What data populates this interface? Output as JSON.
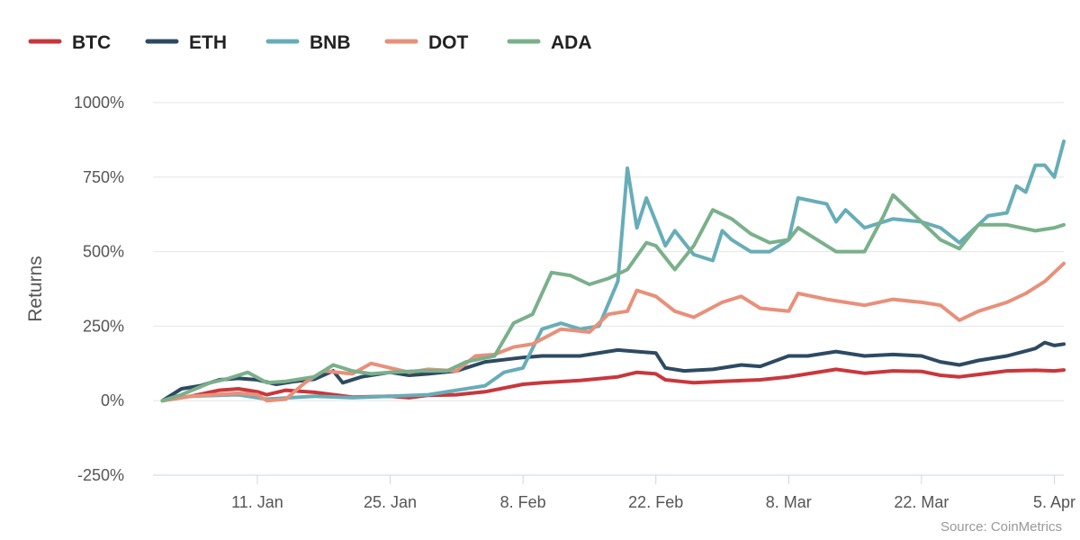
{
  "chart_data": {
    "type": "line",
    "ylabel": "Returns",
    "source": "Source: CoinMetrics",
    "ylim": [
      -250,
      1000
    ],
    "yticks": [
      -250,
      0,
      250,
      500,
      750,
      1000
    ],
    "ytick_labels": [
      "-250%",
      "0%",
      "250%",
      "500%",
      "750%",
      "1000%"
    ],
    "xlim": [
      "2020-12-31",
      "2021-04-06"
    ],
    "xticks": [
      "2021-01-11",
      "2021-01-25",
      "2021-02-08",
      "2021-02-22",
      "2021-03-08",
      "2021-03-22",
      "2021-04-05"
    ],
    "xtick_labels": [
      "11. Jan",
      "25. Jan",
      "8. Feb",
      "22. Feb",
      "8. Mar",
      "22. Mar",
      "5. Apr"
    ],
    "grid": true,
    "legend": "top-left",
    "series": [
      {
        "name": "BTC",
        "color": "#c8373c",
        "points": [
          [
            "2021-01-01",
            0
          ],
          [
            "2021-01-04",
            15
          ],
          [
            "2021-01-07",
            35
          ],
          [
            "2021-01-09",
            40
          ],
          [
            "2021-01-11",
            30
          ],
          [
            "2021-01-12",
            20
          ],
          [
            "2021-01-14",
            35
          ],
          [
            "2021-01-17",
            28
          ],
          [
            "2021-01-21",
            12
          ],
          [
            "2021-01-25",
            15
          ],
          [
            "2021-01-27",
            10
          ],
          [
            "2021-01-29",
            18
          ],
          [
            "2021-02-01",
            20
          ],
          [
            "2021-02-04",
            30
          ],
          [
            "2021-02-08",
            55
          ],
          [
            "2021-02-10",
            60
          ],
          [
            "2021-02-14",
            68
          ],
          [
            "2021-02-18",
            80
          ],
          [
            "2021-02-20",
            95
          ],
          [
            "2021-02-22",
            90
          ],
          [
            "2021-02-23",
            70
          ],
          [
            "2021-02-26",
            60
          ],
          [
            "2021-03-01",
            65
          ],
          [
            "2021-03-05",
            70
          ],
          [
            "2021-03-08",
            80
          ],
          [
            "2021-03-10",
            90
          ],
          [
            "2021-03-13",
            105
          ],
          [
            "2021-03-16",
            92
          ],
          [
            "2021-03-19",
            100
          ],
          [
            "2021-03-22",
            98
          ],
          [
            "2021-03-24",
            85
          ],
          [
            "2021-03-26",
            80
          ],
          [
            "2021-03-28",
            88
          ],
          [
            "2021-03-31",
            100
          ],
          [
            "2021-04-03",
            102
          ],
          [
            "2021-04-05",
            100
          ],
          [
            "2021-04-06",
            103
          ]
        ]
      },
      {
        "name": "ETH",
        "color": "#2e4a62",
        "points": [
          [
            "2021-01-01",
            0
          ],
          [
            "2021-01-03",
            40
          ],
          [
            "2021-01-05",
            50
          ],
          [
            "2021-01-07",
            70
          ],
          [
            "2021-01-09",
            75
          ],
          [
            "2021-01-11",
            70
          ],
          [
            "2021-01-13",
            55
          ],
          [
            "2021-01-15",
            65
          ],
          [
            "2021-01-17",
            72
          ],
          [
            "2021-01-19",
            100
          ],
          [
            "2021-01-20",
            60
          ],
          [
            "2021-01-22",
            80
          ],
          [
            "2021-01-25",
            95
          ],
          [
            "2021-01-27",
            85
          ],
          [
            "2021-01-29",
            90
          ],
          [
            "2021-02-01",
            100
          ],
          [
            "2021-02-04",
            130
          ],
          [
            "2021-02-08",
            145
          ],
          [
            "2021-02-10",
            150
          ],
          [
            "2021-02-14",
            150
          ],
          [
            "2021-02-18",
            170
          ],
          [
            "2021-02-20",
            165
          ],
          [
            "2021-02-22",
            160
          ],
          [
            "2021-02-23",
            110
          ],
          [
            "2021-02-25",
            100
          ],
          [
            "2021-02-28",
            105
          ],
          [
            "2021-03-03",
            120
          ],
          [
            "2021-03-05",
            115
          ],
          [
            "2021-03-08",
            150
          ],
          [
            "2021-03-10",
            150
          ],
          [
            "2021-03-13",
            165
          ],
          [
            "2021-03-16",
            150
          ],
          [
            "2021-03-19",
            155
          ],
          [
            "2021-03-22",
            150
          ],
          [
            "2021-03-24",
            130
          ],
          [
            "2021-03-26",
            120
          ],
          [
            "2021-03-28",
            135
          ],
          [
            "2021-03-31",
            150
          ],
          [
            "2021-04-03",
            175
          ],
          [
            "2021-04-04",
            195
          ],
          [
            "2021-04-05",
            185
          ],
          [
            "2021-04-06",
            190
          ]
        ]
      },
      {
        "name": "BNB",
        "color": "#67adb8",
        "points": [
          [
            "2021-01-01",
            0
          ],
          [
            "2021-01-04",
            15
          ],
          [
            "2021-01-09",
            20
          ],
          [
            "2021-01-12",
            5
          ],
          [
            "2021-01-17",
            15
          ],
          [
            "2021-01-21",
            10
          ],
          [
            "2021-01-25",
            15
          ],
          [
            "2021-01-29",
            20
          ],
          [
            "2021-02-01",
            35
          ],
          [
            "2021-02-04",
            50
          ],
          [
            "2021-02-06",
            95
          ],
          [
            "2021-02-08",
            110
          ],
          [
            "2021-02-10",
            240
          ],
          [
            "2021-02-12",
            260
          ],
          [
            "2021-02-14",
            240
          ],
          [
            "2021-02-16",
            250
          ],
          [
            "2021-02-18",
            400
          ],
          [
            "2021-02-19",
            780
          ],
          [
            "2021-02-20",
            580
          ],
          [
            "2021-02-21",
            680
          ],
          [
            "2021-02-23",
            520
          ],
          [
            "2021-02-24",
            570
          ],
          [
            "2021-02-26",
            490
          ],
          [
            "2021-02-28",
            470
          ],
          [
            "2021-03-01",
            570
          ],
          [
            "2021-03-02",
            540
          ],
          [
            "2021-03-04",
            500
          ],
          [
            "2021-03-06",
            500
          ],
          [
            "2021-03-08",
            540
          ],
          [
            "2021-03-09",
            680
          ],
          [
            "2021-03-12",
            660
          ],
          [
            "2021-03-13",
            600
          ],
          [
            "2021-03-14",
            640
          ],
          [
            "2021-03-16",
            580
          ],
          [
            "2021-03-19",
            610
          ],
          [
            "2021-03-22",
            600
          ],
          [
            "2021-03-24",
            580
          ],
          [
            "2021-03-26",
            530
          ],
          [
            "2021-03-27",
            560
          ],
          [
            "2021-03-29",
            620
          ],
          [
            "2021-03-31",
            630
          ],
          [
            "2021-04-01",
            720
          ],
          [
            "2021-04-02",
            700
          ],
          [
            "2021-04-03",
            790
          ],
          [
            "2021-04-04",
            790
          ],
          [
            "2021-04-05",
            750
          ],
          [
            "2021-04-06",
            870
          ]
        ]
      },
      {
        "name": "DOT",
        "color": "#e8907a",
        "points": [
          [
            "2021-01-01",
            0
          ],
          [
            "2021-01-04",
            15
          ],
          [
            "2021-01-09",
            25
          ],
          [
            "2021-01-11",
            20
          ],
          [
            "2021-01-12",
            0
          ],
          [
            "2021-01-14",
            5
          ],
          [
            "2021-01-16",
            60
          ],
          [
            "2021-01-18",
            100
          ],
          [
            "2021-01-21",
            90
          ],
          [
            "2021-01-23",
            125
          ],
          [
            "2021-01-25",
            110
          ],
          [
            "2021-01-27",
            95
          ],
          [
            "2021-01-29",
            105
          ],
          [
            "2021-02-01",
            100
          ],
          [
            "2021-02-03",
            150
          ],
          [
            "2021-02-05",
            155
          ],
          [
            "2021-02-07",
            180
          ],
          [
            "2021-02-09",
            190
          ],
          [
            "2021-02-12",
            240
          ],
          [
            "2021-02-15",
            230
          ],
          [
            "2021-02-17",
            290
          ],
          [
            "2021-02-19",
            300
          ],
          [
            "2021-02-20",
            370
          ],
          [
            "2021-02-22",
            350
          ],
          [
            "2021-02-24",
            300
          ],
          [
            "2021-02-26",
            280
          ],
          [
            "2021-03-01",
            330
          ],
          [
            "2021-03-03",
            350
          ],
          [
            "2021-03-05",
            310
          ],
          [
            "2021-03-08",
            300
          ],
          [
            "2021-03-09",
            360
          ],
          [
            "2021-03-12",
            340
          ],
          [
            "2021-03-14",
            330
          ],
          [
            "2021-03-16",
            320
          ],
          [
            "2021-03-19",
            340
          ],
          [
            "2021-03-22",
            330
          ],
          [
            "2021-03-24",
            320
          ],
          [
            "2021-03-26",
            270
          ],
          [
            "2021-03-28",
            300
          ],
          [
            "2021-03-31",
            330
          ],
          [
            "2021-04-02",
            360
          ],
          [
            "2021-04-04",
            400
          ],
          [
            "2021-04-06",
            460
          ]
        ]
      },
      {
        "name": "ADA",
        "color": "#7ab08a",
        "points": [
          [
            "2021-01-01",
            0
          ],
          [
            "2021-01-03",
            20
          ],
          [
            "2021-01-06",
            60
          ],
          [
            "2021-01-08",
            75
          ],
          [
            "2021-01-10",
            95
          ],
          [
            "2021-01-12",
            60
          ],
          [
            "2021-01-14",
            65
          ],
          [
            "2021-01-17",
            80
          ],
          [
            "2021-01-19",
            120
          ],
          [
            "2021-01-21",
            100
          ],
          [
            "2021-01-23",
            90
          ],
          [
            "2021-01-25",
            95
          ],
          [
            "2021-01-28",
            100
          ],
          [
            "2021-01-31",
            100
          ],
          [
            "2021-02-02",
            130
          ],
          [
            "2021-02-05",
            150
          ],
          [
            "2021-02-07",
            260
          ],
          [
            "2021-02-09",
            290
          ],
          [
            "2021-02-11",
            430
          ],
          [
            "2021-02-13",
            420
          ],
          [
            "2021-02-15",
            390
          ],
          [
            "2021-02-17",
            410
          ],
          [
            "2021-02-19",
            440
          ],
          [
            "2021-02-21",
            530
          ],
          [
            "2021-02-22",
            520
          ],
          [
            "2021-02-24",
            440
          ],
          [
            "2021-02-26",
            520
          ],
          [
            "2021-02-28",
            640
          ],
          [
            "2021-03-02",
            610
          ],
          [
            "2021-03-04",
            560
          ],
          [
            "2021-03-06",
            530
          ],
          [
            "2021-03-08",
            540
          ],
          [
            "2021-03-09",
            580
          ],
          [
            "2021-03-11",
            540
          ],
          [
            "2021-03-13",
            500
          ],
          [
            "2021-03-16",
            500
          ],
          [
            "2021-03-18",
            620
          ],
          [
            "2021-03-19",
            690
          ],
          [
            "2021-03-21",
            630
          ],
          [
            "2021-03-24",
            540
          ],
          [
            "2021-03-26",
            510
          ],
          [
            "2021-03-28",
            590
          ],
          [
            "2021-03-31",
            590
          ],
          [
            "2021-04-03",
            570
          ],
          [
            "2021-04-05",
            580
          ],
          [
            "2021-04-06",
            590
          ]
        ]
      }
    ]
  }
}
